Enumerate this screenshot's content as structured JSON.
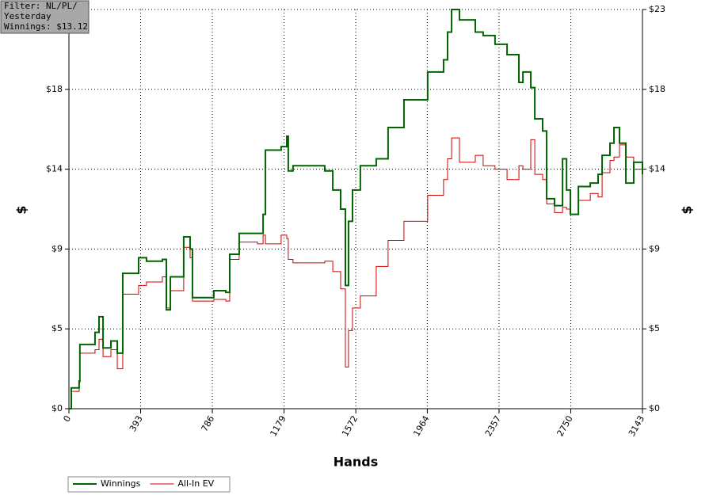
{
  "chart_data": {
    "type": "line",
    "x_label": "Hands",
    "y_label": "$",
    "y2_label": "$",
    "annotations": [
      "Filter: NL/PL/",
      "Yesterday",
      "Winnings: $13.12"
    ],
    "x": [
      0,
      13,
      56,
      60,
      143,
      165,
      187,
      230,
      265,
      295,
      382,
      425,
      512,
      534,
      556,
      629,
      664,
      677,
      794,
      860,
      881,
      933,
      1033,
      1064,
      1077,
      1163,
      1194,
      1202,
      1228,
      1402,
      1446,
      1489,
      1515,
      1532,
      1554,
      1597,
      1684,
      1749,
      1836,
      1966,
      2053,
      2075,
      2097,
      2140,
      2227,
      2270,
      2335,
      2401,
      2466,
      2488,
      2531,
      2553,
      2596,
      2618,
      2661,
      2705,
      2727,
      2748,
      2792,
      2857,
      2900,
      2922,
      2965,
      2987,
      3017,
      3052,
      3095,
      3143
    ],
    "series": [
      {
        "name": "Winnings",
        "color": "#006400",
        "values": [
          0,
          1.2,
          1.6,
          3.7,
          4.4,
          5.3,
          3.5,
          3.9,
          3.2,
          7.8,
          8.7,
          8.5,
          8.6,
          5.7,
          7.6,
          9.9,
          9.2,
          6.4,
          6.8,
          6.7,
          8.9,
          10.1,
          10.1,
          11.2,
          14.9,
          15.1,
          15.7,
          13.7,
          14.0,
          13.7,
          12.6,
          11.5,
          7.1,
          10.8,
          12.6,
          14.0,
          14.4,
          16.2,
          17.8,
          19.4,
          20.1,
          21.7,
          23.0,
          22.4,
          21.7,
          21.5,
          21.0,
          20.4,
          18.8,
          19.4,
          18.5,
          16.7,
          16.0,
          12.1,
          11.7,
          14.4,
          12.6,
          11.2,
          12.8,
          13.0,
          13.5,
          14.6,
          15.3,
          16.2,
          15.3,
          13.0,
          14.2,
          13.5
        ]
      },
      {
        "name": "All-In EV",
        "color": "#cc0000",
        "values": [
          0,
          1.0,
          1.5,
          3.2,
          3.4,
          4.0,
          3.0,
          3.4,
          2.3,
          6.6,
          7.1,
          7.3,
          7.6,
          5.8,
          6.8,
          9.3,
          8.7,
          6.2,
          6.3,
          6.2,
          8.6,
          9.6,
          9.5,
          10.0,
          9.5,
          10.0,
          9.8,
          8.6,
          8.4,
          8.5,
          7.9,
          6.9,
          2.4,
          4.5,
          5.8,
          6.5,
          8.2,
          9.7,
          10.8,
          12.3,
          13.2,
          14.4,
          15.6,
          14.2,
          14.6,
          14.0,
          13.8,
          13.2,
          14.0,
          13.8,
          15.5,
          13.5,
          13.2,
          11.8,
          11.3,
          11.6,
          11.5,
          11.2,
          12.0,
          12.4,
          12.2,
          13.6,
          14.3,
          14.5,
          15.2,
          14.5,
          13.8,
          13.5
        ]
      }
    ],
    "xlim": [
      0,
      3143
    ],
    "xticks": [
      0,
      393,
      786,
      1179,
      1572,
      1964,
      2357,
      2750,
      3143
    ],
    "ylim": [
      0,
      23
    ],
    "yticks": [
      {
        "value": 0,
        "label": "$0"
      },
      {
        "value": 4.6,
        "label": "$5"
      },
      {
        "value": 9.2,
        "label": "$9"
      },
      {
        "value": 13.8,
        "label": "$14"
      },
      {
        "value": 18.4,
        "label": "$18"
      },
      {
        "value": 23,
        "label": "$23"
      }
    ],
    "grid": true,
    "legend": "bottom-left",
    "step": true
  }
}
